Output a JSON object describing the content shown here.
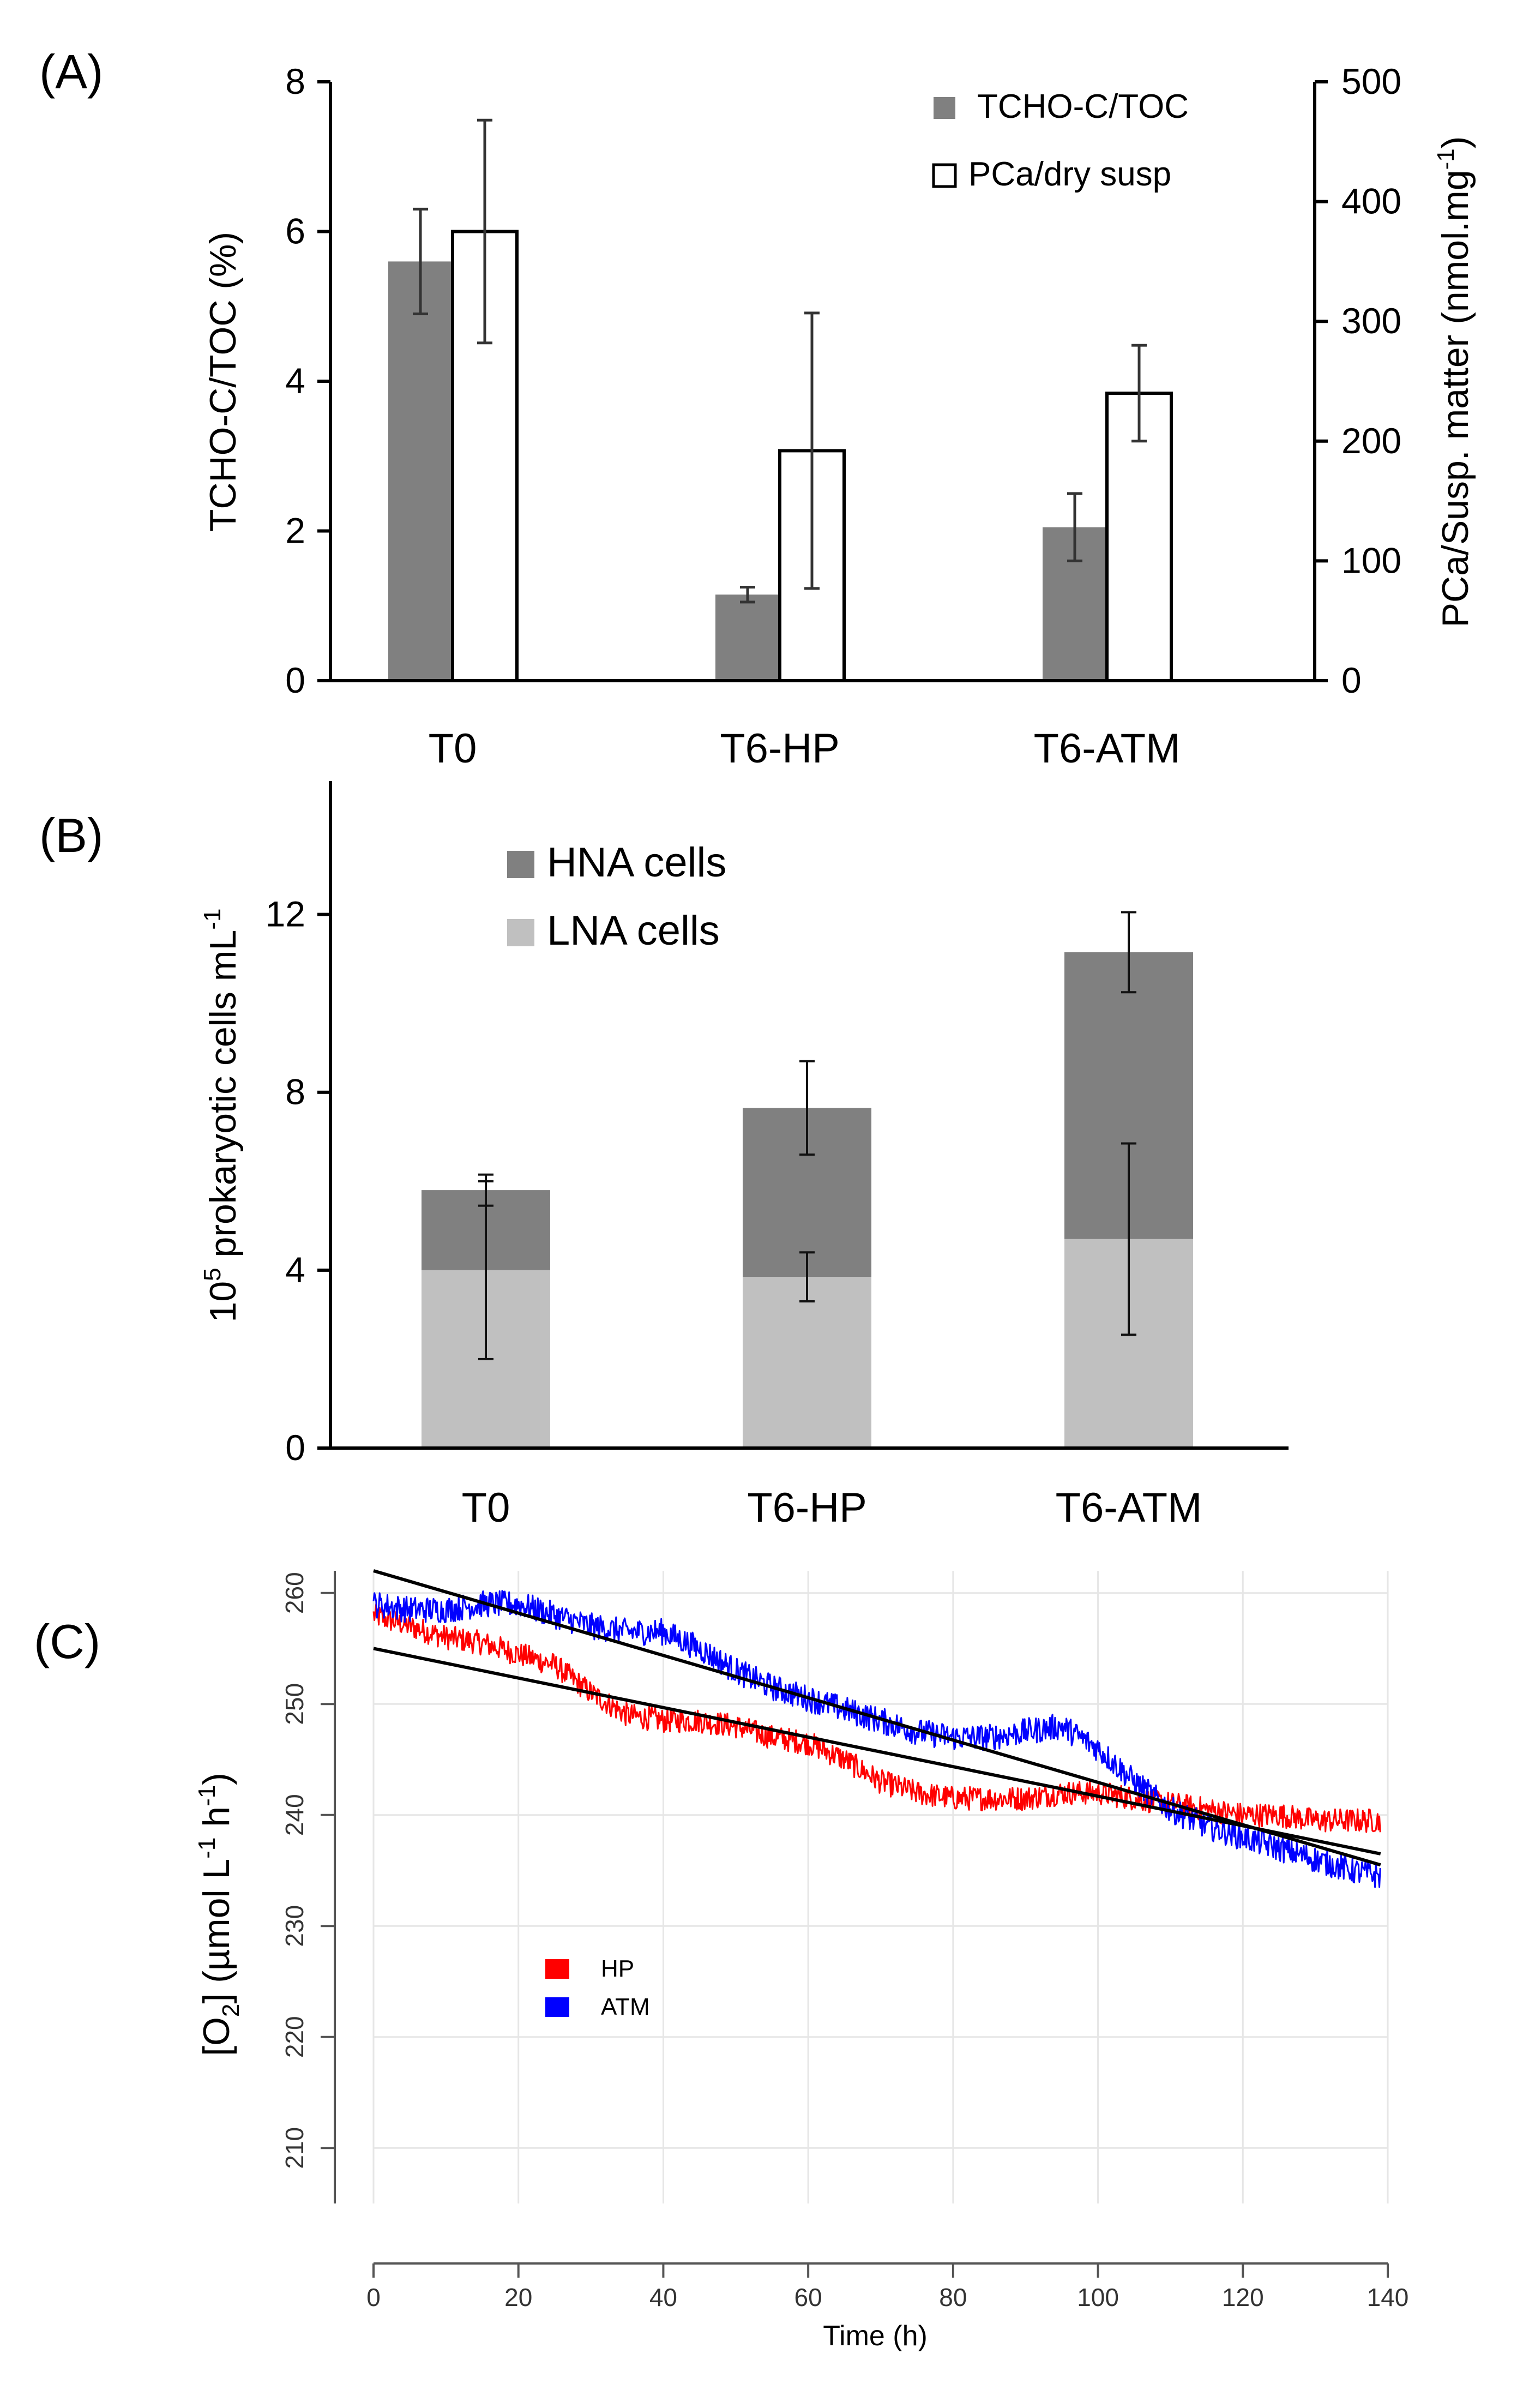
{
  "chart_data": [
    {
      "panel_label": "(A)",
      "type": "bar",
      "categories": [
        "T0",
        "T6-HP",
        "T6-ATM"
      ],
      "y_left": {
        "label": "TCHO-C/TOC (%)",
        "ylim": [
          0,
          8
        ],
        "ticks": [
          "0",
          "2",
          "4",
          "6",
          "8"
        ]
      },
      "y_right": {
        "label_main": "PCa/Susp. matter (nmol.mg",
        "label_sup": "-1",
        "label_end": ")",
        "ylim": [
          0,
          500
        ],
        "ticks": [
          "0",
          "100",
          "200",
          "300",
          "400",
          "500"
        ]
      },
      "series": [
        {
          "name": "TCHO-C/TOC",
          "axis": "left",
          "color": "#808080",
          "values": [
            5.6,
            1.15,
            2.05
          ],
          "errors": [
            0.7,
            0.1,
            0.45
          ]
        },
        {
          "name": "PCa/dry susp",
          "axis": "right",
          "color": "#ffffff",
          "values": [
            375,
            192,
            240
          ],
          "errors": [
            93,
            115,
            40
          ]
        }
      ]
    },
    {
      "panel_label": "(B)",
      "type": "stacked-bar",
      "categories": [
        "T0",
        "T6-HP",
        "T6-ATM"
      ],
      "y": {
        "label_pre": "10",
        "label_sup": "5",
        "label_main": " prokaryotic cells mL",
        "label_sup2": "-1",
        "ylim": [
          0,
          15
        ],
        "ticks": [
          "0",
          "4",
          "8",
          "12"
        ]
      },
      "series": [
        {
          "name": "LNA cells",
          "color": "#c0c0c0",
          "values": [
            4.0,
            3.85,
            4.7
          ],
          "errors": [
            2.0,
            0.55,
            2.15
          ]
        },
        {
          "name": "HNA cells",
          "color": "#808080",
          "values": [
            1.8,
            3.8,
            6.45
          ],
          "errors": [
            0.35,
            1.05,
            0.9
          ]
        }
      ]
    },
    {
      "panel_label": "(C)",
      "type": "line",
      "x": {
        "label": "Time (h)",
        "xlim": [
          0,
          140
        ],
        "ticks": [
          "0",
          "20",
          "40",
          "60",
          "80",
          "100",
          "120",
          "140"
        ]
      },
      "y": {
        "label_pre": "[O",
        "label_sub": "2",
        "label_mid": "] (µmol L",
        "label_sup1": "-1",
        "label_mid2": " h",
        "label_sup2": "-1",
        "label_end": ")",
        "ylim": [
          205,
          262
        ],
        "ticks": [
          "210",
          "220",
          "230",
          "240",
          "250",
          "260"
        ]
      },
      "series": [
        {
          "name": "HP",
          "color": "#ff0000",
          "x": [
            0,
            5,
            10,
            15,
            20,
            25,
            30,
            35,
            40,
            45,
            50,
            55,
            60,
            65,
            70,
            75,
            80,
            85,
            90,
            95,
            100,
            105,
            110,
            115,
            120,
            125,
            130,
            135,
            139
          ],
          "y": [
            258,
            257,
            256,
            255.5,
            254.5,
            253.5,
            251,
            249,
            248.5,
            248.5,
            248,
            247,
            246.5,
            245,
            243,
            242,
            241.5,
            241.5,
            241.5,
            242,
            242,
            241.5,
            241,
            240.5,
            240,
            240,
            239.5,
            239.5,
            239.5
          ],
          "noise": 1.1
        },
        {
          "name": "ATM",
          "color": "#0000ff",
          "x": [
            0,
            5,
            10,
            15,
            20,
            25,
            30,
            35,
            40,
            45,
            50,
            55,
            60,
            65,
            70,
            75,
            80,
            85,
            90,
            95,
            100,
            105,
            110,
            115,
            120,
            125,
            130,
            135,
            139
          ],
          "y": [
            259,
            258.5,
            258.5,
            259,
            259,
            258,
            257,
            256.5,
            256.5,
            255,
            253,
            251.5,
            250.5,
            249.5,
            248.5,
            247.5,
            247,
            247,
            247.5,
            248,
            246,
            243,
            240.5,
            239,
            238,
            237,
            236,
            235,
            234.5
          ],
          "noise": 1.2
        }
      ],
      "trendlines": [
        {
          "name": "HP fit",
          "x": [
            0,
            139
          ],
          "y": [
            255,
            236.5
          ],
          "color": "#000000"
        },
        {
          "name": "ATM fit",
          "x": [
            0,
            139
          ],
          "y": [
            262,
            235.5
          ],
          "color": "#000000"
        }
      ]
    }
  ]
}
